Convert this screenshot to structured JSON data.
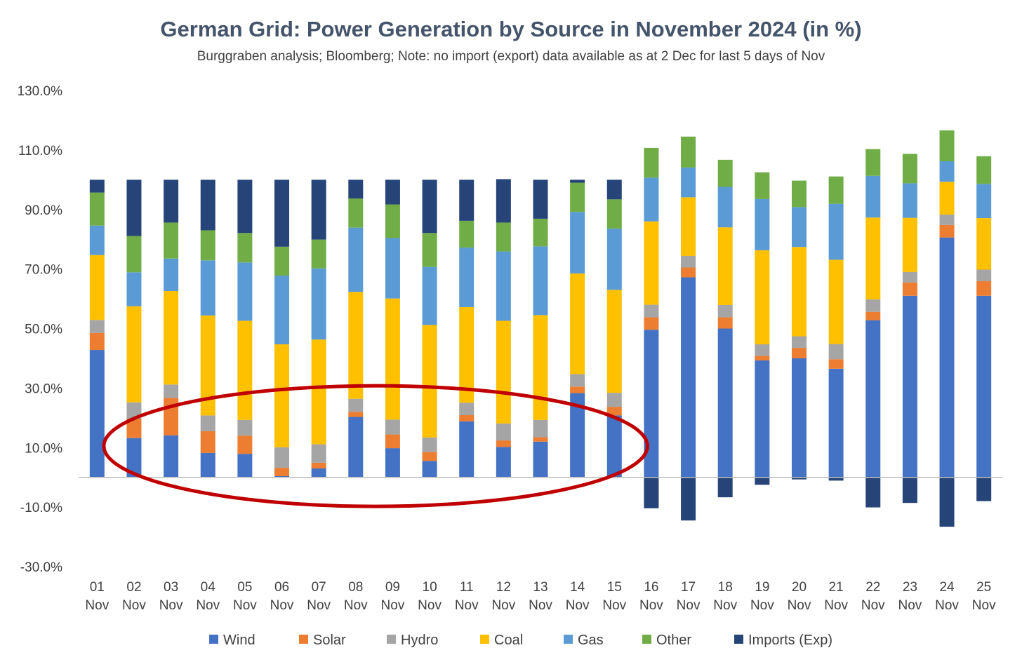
{
  "chart_data": {
    "type": "bar",
    "stacked": true,
    "title": "German Grid: Power Generation by Source in November 2024 (in %)",
    "subtitle": "Burggraben analysis; Bloomberg; Note: no import (export) data available as at 2 Dec for last 5 days of Nov",
    "categories": [
      "01 Nov",
      "02 Nov",
      "03 Nov",
      "04 Nov",
      "05 Nov",
      "06 Nov",
      "07 Nov",
      "08 Nov",
      "09 Nov",
      "10 Nov",
      "11 Nov",
      "12 Nov",
      "13 Nov",
      "14 Nov",
      "15 Nov",
      "16 Nov",
      "17 Nov",
      "18 Nov",
      "19 Nov",
      "20 Nov",
      "21 Nov",
      "22 Nov",
      "23 Nov",
      "24 Nov",
      "25 Nov"
    ],
    "category_lines": [
      [
        "01",
        "Nov"
      ],
      [
        "02",
        "Nov"
      ],
      [
        "03",
        "Nov"
      ],
      [
        "04",
        "Nov"
      ],
      [
        "05",
        "Nov"
      ],
      [
        "06",
        "Nov"
      ],
      [
        "07",
        "Nov"
      ],
      [
        "08",
        "Nov"
      ],
      [
        "09",
        "Nov"
      ],
      [
        "10",
        "Nov"
      ],
      [
        "11",
        "Nov"
      ],
      [
        "12",
        "Nov"
      ],
      [
        "13",
        "Nov"
      ],
      [
        "14",
        "Nov"
      ],
      [
        "15",
        "Nov"
      ],
      [
        "16",
        "Nov"
      ],
      [
        "17",
        "Nov"
      ],
      [
        "18",
        "Nov"
      ],
      [
        "19",
        "Nov"
      ],
      [
        "20",
        "Nov"
      ],
      [
        "21",
        "Nov"
      ],
      [
        "22",
        "Nov"
      ],
      [
        "23",
        "Nov"
      ],
      [
        "24",
        "Nov"
      ],
      [
        "25",
        "Nov"
      ]
    ],
    "series": [
      {
        "name": "Wind",
        "color": "#4472C4",
        "values": [
          42.8,
          13.2,
          14.1,
          8.2,
          7.9,
          0.4,
          3.0,
          20.3,
          9.8,
          5.5,
          18.8,
          10.2,
          12.0,
          28.3,
          20.8,
          49.6,
          67.2,
          50.0,
          39.3,
          40.0,
          36.5,
          52.8,
          61.0,
          80.6,
          61.0
        ]
      },
      {
        "name": "Solar",
        "color": "#ED7D31",
        "values": [
          5.7,
          6.5,
          12.6,
          7.3,
          6.1,
          2.8,
          1.9,
          1.7,
          4.6,
          3.0,
          2.1,
          2.2,
          1.5,
          2.2,
          2.9,
          4.2,
          3.3,
          3.8,
          1.5,
          3.5,
          3.2,
          2.8,
          4.5,
          4.2,
          4.9
        ]
      },
      {
        "name": "Hydro",
        "color": "#A5A5A5",
        "values": [
          4.4,
          5.5,
          4.5,
          5.3,
          5.3,
          6.9,
          6.2,
          4.4,
          5.0,
          4.9,
          4.2,
          5.7,
          5.8,
          4.2,
          4.7,
          4.2,
          3.9,
          4.1,
          3.9,
          3.9,
          5.1,
          4.2,
          3.5,
          3.5,
          3.9
        ]
      },
      {
        "name": "Coal",
        "color": "#FFC000",
        "values": [
          21.8,
          32.3,
          31.4,
          33.6,
          33.3,
          34.6,
          35.2,
          35.9,
          40.7,
          37.8,
          32.1,
          34.5,
          35.2,
          33.8,
          34.6,
          28.0,
          19.7,
          26.1,
          31.6,
          30.0,
          28.3,
          27.5,
          18.2,
          11.0,
          17.3
        ]
      },
      {
        "name": "Gas",
        "color": "#5B9BD5",
        "values": [
          9.9,
          11.4,
          10.9,
          18.5,
          19.6,
          23.1,
          23.9,
          21.6,
          20.3,
          19.5,
          20.0,
          23.3,
          23.1,
          20.7,
          20.6,
          14.7,
          10.0,
          13.6,
          17.2,
          13.4,
          18.8,
          14.0,
          11.6,
          6.9,
          11.5
        ]
      },
      {
        "name": "Other",
        "color": "#70AD47",
        "values": [
          11.1,
          12.2,
          12.1,
          10.1,
          9.9,
          9.7,
          9.7,
          9.8,
          11.3,
          11.4,
          9.0,
          9.7,
          9.3,
          9.8,
          9.8,
          10.0,
          10.4,
          9.1,
          9.0,
          8.9,
          9.2,
          9.0,
          9.9,
          10.4,
          9.3
        ]
      },
      {
        "name": "Imports (Exp)",
        "color": "#264478",
        "values": [
          4.3,
          18.9,
          14.4,
          17.0,
          17.9,
          22.5,
          20.1,
          6.3,
          8.3,
          17.9,
          13.8,
          14.6,
          13.1,
          1.0,
          6.6,
          -10.4,
          -14.5,
          -6.7,
          -2.5,
          -0.7,
          -1.1,
          -10.1,
          -8.6,
          -16.6,
          -8.0
        ]
      }
    ],
    "ylim": [
      -30,
      130
    ],
    "y_ticks": [
      -30,
      -10,
      10,
      30,
      50,
      70,
      90,
      110,
      130
    ],
    "y_tick_labels": [
      "-30.0%",
      "-10.0%",
      "10.0%",
      "30.0%",
      "50.0%",
      "70.0%",
      "90.0%",
      "110.0%",
      "130.0%"
    ],
    "grid": false,
    "legend_position": "bottom",
    "annotation": {
      "shape": "ellipse",
      "color": "#C00000",
      "description": "red ellipse highlighting 02 Nov through 15 Nov low-wind period"
    }
  }
}
